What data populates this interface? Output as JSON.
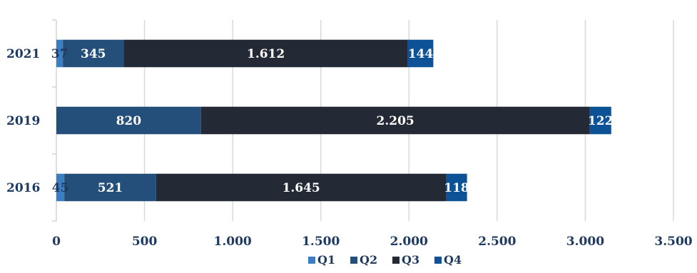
{
  "chart_data": {
    "type": "bar",
    "orientation": "horizontal",
    "stacked": true,
    "categories": [
      "2021",
      "2019",
      "2016"
    ],
    "series": [
      {
        "name": "Q1",
        "values": [
          37,
          0,
          45
        ],
        "labels": [
          "37",
          "",
          "45"
        ],
        "color": "#3a7fc4",
        "label_color": "#1f3a60"
      },
      {
        "name": "Q2",
        "values": [
          345,
          820,
          521
        ],
        "labels": [
          "345",
          "820",
          "521"
        ],
        "color": "#234f7a",
        "label_color": "#ffffff"
      },
      {
        "name": "Q3",
        "values": [
          1612,
          2205,
          1645
        ],
        "labels": [
          "1.612",
          "2.205",
          "1.645"
        ],
        "color": "#242a35",
        "label_color": "#ffffff"
      },
      {
        "name": "Q4",
        "values": [
          144,
          122,
          118
        ],
        "labels": [
          "144",
          "122",
          "118"
        ],
        "color": "#0d5197",
        "label_color": "#ffffff"
      }
    ],
    "x_ticks": [
      "0",
      "500",
      "1.000",
      "1.500",
      "2.000",
      "2.500",
      "3.000",
      "3.500"
    ],
    "xlim": [
      0,
      3500
    ],
    "title": "",
    "xlabel": "",
    "ylabel": "",
    "grid": "vertical",
    "legend_position": "bottom"
  }
}
